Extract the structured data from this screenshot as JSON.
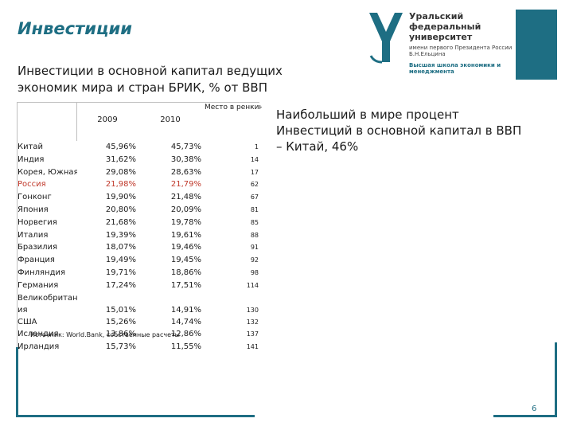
{
  "header": {
    "title": "Инвестиции"
  },
  "logo": {
    "line1": "Уральский федеральный университет",
    "line2": "имени первого Президента России Б.Н.Ельцина",
    "line3": "Высшая школа экономики и менеджмента",
    "accent_color": "#1e6e83"
  },
  "subtitle": "Инвестиции в основной капитал ведущих экономик мира и стран БРИК, % от ВВП",
  "table": {
    "headers": {
      "col_2009": "2009",
      "col_2010": "2010",
      "col_rank": "Место в ренкинге"
    },
    "highlight_color": "#c0392b",
    "rows": [
      {
        "country": "Китай",
        "v2009": "45,96%",
        "v2010": "45,73%",
        "rank": "1"
      },
      {
        "country": "Индия",
        "v2009": "31,62%",
        "v2010": "30,38%",
        "rank": "14"
      },
      {
        "country": "Корея, Южная",
        "v2009": "29,08%",
        "v2010": "28,63%",
        "rank": "17"
      },
      {
        "country": "Россия",
        "v2009": "21,98%",
        "v2010": "21,79%",
        "rank": "62"
      },
      {
        "country": "Гонконг",
        "v2009": "19,90%",
        "v2010": "21,48%",
        "rank": "67"
      },
      {
        "country": "Япония",
        "v2009": "20,80%",
        "v2010": "20,09%",
        "rank": "81"
      },
      {
        "country": "Норвегия",
        "v2009": "21,68%",
        "v2010": "19,78%",
        "rank": "85"
      },
      {
        "country": "Италия",
        "v2009": "19,39%",
        "v2010": "19,61%",
        "rank": "88"
      },
      {
        "country": "Бразилия",
        "v2009": "18,07%",
        "v2010": "19,46%",
        "rank": "91"
      },
      {
        "country": "Франция",
        "v2009": "19,49%",
        "v2010": "19,45%",
        "rank": "92"
      },
      {
        "country": "Финляндия",
        "v2009": "19,71%",
        "v2010": "18,86%",
        "rank": "98"
      },
      {
        "country": "Германия",
        "v2009": "17,24%",
        "v2010": "17,51%",
        "rank": "114"
      },
      {
        "country_line1": "Великобритан",
        "country_line2": "ия",
        "v2009": "15,01%",
        "v2010": "14,91%",
        "rank": "130"
      },
      {
        "country": "США",
        "v2009": "15,26%",
        "v2010": "14,74%",
        "rank": "132"
      },
      {
        "country": "Исландия",
        "v2009": "13,86%",
        "v2010": "12,86%",
        "rank": "137"
      },
      {
        "country": "Ирландия",
        "v2009": "15,73%",
        "v2010": "11,55%",
        "rank": "141"
      }
    ]
  },
  "source": "Источник: World.Bank, собственные расчеты",
  "callout": "Наибольший в мире процент Инвестиций в основной капитал в ВВП – Китай, 46%",
  "page_number": "6"
}
